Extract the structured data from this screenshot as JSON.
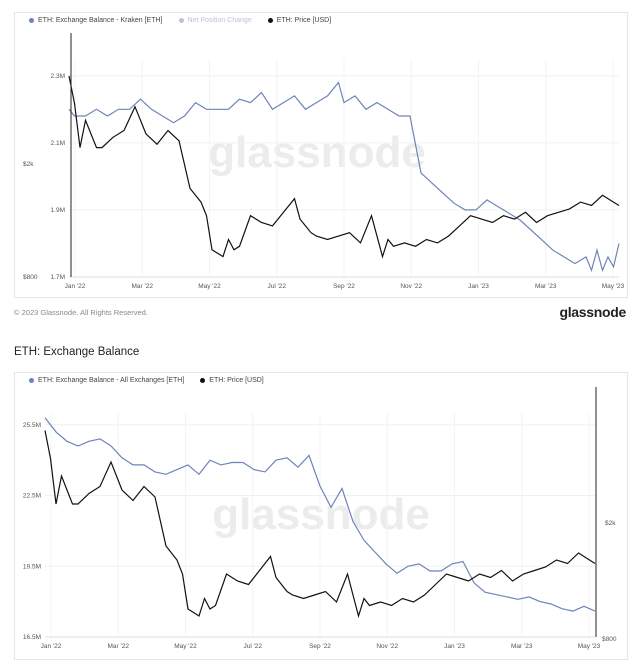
{
  "colors": {
    "balance": "#6d84b8",
    "price": "#111111",
    "muted": "#b9c3d6",
    "watermark": "#ececec"
  },
  "top_chart": {
    "legend": [
      {
        "label": "ETH: Exchange Balance - Kraken [ETH]",
        "color": "#6d84b8",
        "muted": false
      },
      {
        "label": "Net Position Change",
        "color": "#b9c3d6",
        "muted": true
      },
      {
        "label": "ETH: Price [USD]",
        "color": "#111111",
        "muted": false
      }
    ],
    "watermark": "glassnode",
    "left_axis_outer": [
      "$2k",
      "$800"
    ],
    "right_axis": []
  },
  "footer": {
    "copyright": "© 2023 Glassnode. All Rights Reserved.",
    "brand": "glassnode"
  },
  "bottom_chart": {
    "title": "ETH: Exchange Balance",
    "legend": [
      {
        "label": "ETH: Exchange Balance - All Exchanges [ETH]",
        "color": "#6d84b8",
        "muted": false
      },
      {
        "label": "ETH: Price [USD]",
        "color": "#111111",
        "muted": false
      }
    ],
    "watermark": "glassnode",
    "right_axis": [
      "$2k",
      "$800"
    ]
  },
  "chart_data": [
    {
      "type": "line",
      "title": "",
      "x_ticks": [
        "Jan '22",
        "Mar '22",
        "May '22",
        "Jul '22",
        "Sep '22",
        "Nov '22",
        "Jan '23",
        "Mar '23",
        "May '23"
      ],
      "y_ticks": [
        "2.3M",
        "2.1M",
        "1.9M",
        "1.7M"
      ],
      "ylim": [
        1.7,
        2.35
      ],
      "y_unit": "M",
      "grid": true,
      "legend_position": "top-left",
      "series": [
        {
          "name": "ETH: Exchange Balance - Kraken [ETH]",
          "axis": "left",
          "x": [
            0,
            0.01,
            0.03,
            0.05,
            0.07,
            0.09,
            0.11,
            0.13,
            0.15,
            0.17,
            0.19,
            0.21,
            0.23,
            0.25,
            0.27,
            0.29,
            0.31,
            0.33,
            0.35,
            0.37,
            0.39,
            0.41,
            0.43,
            0.45,
            0.47,
            0.49,
            0.5,
            0.52,
            0.54,
            0.56,
            0.58,
            0.6,
            0.62,
            0.64,
            0.66,
            0.68,
            0.7,
            0.72,
            0.74,
            0.76,
            0.78,
            0.8,
            0.82,
            0.84,
            0.86,
            0.88,
            0.9,
            0.92,
            0.94,
            0.95,
            0.96,
            0.97,
            0.98,
            0.99,
            1.0
          ],
          "values": [
            2.2,
            2.18,
            2.18,
            2.2,
            2.18,
            2.2,
            2.2,
            2.23,
            2.2,
            2.18,
            2.16,
            2.18,
            2.22,
            2.2,
            2.2,
            2.2,
            2.23,
            2.22,
            2.25,
            2.2,
            2.22,
            2.24,
            2.2,
            2.22,
            2.24,
            2.28,
            2.22,
            2.24,
            2.2,
            2.22,
            2.2,
            2.18,
            2.18,
            2.01,
            1.98,
            1.95,
            1.92,
            1.9,
            1.9,
            1.93,
            1.91,
            1.89,
            1.87,
            1.84,
            1.81,
            1.78,
            1.76,
            1.74,
            1.76,
            1.72,
            1.78,
            1.72,
            1.76,
            1.73,
            1.8
          ]
        },
        {
          "name": "ETH: Price [USD]",
          "axis": "right-hidden",
          "x": [
            0,
            0.01,
            0.02,
            0.03,
            0.05,
            0.06,
            0.08,
            0.1,
            0.12,
            0.14,
            0.16,
            0.18,
            0.2,
            0.22,
            0.24,
            0.25,
            0.26,
            0.28,
            0.29,
            0.3,
            0.31,
            0.33,
            0.35,
            0.37,
            0.39,
            0.41,
            0.42,
            0.43,
            0.44,
            0.45,
            0.47,
            0.49,
            0.51,
            0.53,
            0.55,
            0.57,
            0.58,
            0.59,
            0.61,
            0.63,
            0.65,
            0.67,
            0.69,
            0.71,
            0.73,
            0.75,
            0.77,
            0.79,
            0.81,
            0.83,
            0.85,
            0.87,
            0.89,
            0.91,
            0.93,
            0.95,
            0.97,
            0.99,
            1.0
          ],
          "values": [
            3750,
            3350,
            2700,
            3100,
            2700,
            2700,
            2850,
            2950,
            3300,
            2900,
            2750,
            2950,
            2800,
            2100,
            1900,
            1700,
            1200,
            1100,
            1350,
            1200,
            1250,
            1700,
            1600,
            1550,
            1750,
            1950,
            1650,
            1550,
            1450,
            1400,
            1350,
            1400,
            1450,
            1300,
            1700,
            1100,
            1350,
            1250,
            1300,
            1250,
            1350,
            1300,
            1400,
            1550,
            1700,
            1650,
            1600,
            1700,
            1650,
            1750,
            1600,
            1700,
            1750,
            1800,
            1900,
            1850,
            2000,
            1900,
            1850
          ]
        }
      ]
    },
    {
      "type": "line",
      "title": "ETH: Exchange Balance",
      "x_ticks": [
        "Jan '22",
        "Mar '22",
        "May '22",
        "Jul '22",
        "Sep '22",
        "Nov '22",
        "Jan '23",
        "Mar '23",
        "May '23"
      ],
      "y_ticks": [
        "25.5M",
        "22.5M",
        "19.5M",
        "16.5M"
      ],
      "ylim": [
        16.5,
        26.0
      ],
      "y_unit": "M",
      "grid": true,
      "legend_position": "top-left",
      "series": [
        {
          "name": "ETH: Exchange Balance - All Exchanges [ETH]",
          "axis": "left",
          "x": [
            0,
            0.02,
            0.04,
            0.06,
            0.08,
            0.1,
            0.12,
            0.14,
            0.16,
            0.18,
            0.2,
            0.22,
            0.24,
            0.26,
            0.28,
            0.3,
            0.32,
            0.34,
            0.36,
            0.38,
            0.4,
            0.42,
            0.44,
            0.46,
            0.48,
            0.5,
            0.52,
            0.54,
            0.56,
            0.58,
            0.6,
            0.62,
            0.64,
            0.66,
            0.68,
            0.7,
            0.72,
            0.74,
            0.76,
            0.78,
            0.8,
            0.82,
            0.84,
            0.86,
            0.88,
            0.9,
            0.92,
            0.94,
            0.96,
            0.98,
            1.0
          ],
          "values": [
            25.8,
            25.2,
            24.8,
            24.6,
            24.8,
            24.9,
            24.6,
            24.1,
            23.8,
            23.8,
            23.5,
            23.4,
            23.6,
            23.8,
            23.4,
            24.0,
            23.8,
            23.9,
            23.9,
            23.6,
            23.5,
            24.0,
            24.1,
            23.7,
            24.2,
            22.9,
            22.0,
            22.8,
            21.4,
            20.6,
            20.1,
            19.6,
            19.2,
            19.5,
            19.6,
            19.3,
            19.3,
            19.6,
            19.7,
            18.8,
            18.4,
            18.3,
            18.2,
            18.1,
            18.2,
            18.0,
            17.9,
            17.7,
            17.6,
            17.8,
            17.6
          ]
        },
        {
          "name": "ETH: Price [USD]",
          "axis": "right",
          "x": [
            0,
            0.01,
            0.02,
            0.03,
            0.05,
            0.06,
            0.08,
            0.1,
            0.12,
            0.14,
            0.16,
            0.18,
            0.2,
            0.22,
            0.24,
            0.25,
            0.26,
            0.28,
            0.29,
            0.3,
            0.31,
            0.33,
            0.35,
            0.37,
            0.39,
            0.41,
            0.42,
            0.43,
            0.44,
            0.45,
            0.47,
            0.49,
            0.51,
            0.53,
            0.55,
            0.57,
            0.58,
            0.59,
            0.61,
            0.63,
            0.65,
            0.67,
            0.69,
            0.71,
            0.73,
            0.75,
            0.77,
            0.79,
            0.81,
            0.83,
            0.85,
            0.87,
            0.89,
            0.91,
            0.93,
            0.95,
            0.97,
            0.99,
            1.0
          ],
          "values": [
            3750,
            3350,
            2700,
            3100,
            2700,
            2700,
            2850,
            2950,
            3300,
            2900,
            2750,
            2950,
            2800,
            2100,
            1900,
            1700,
            1200,
            1100,
            1350,
            1200,
            1250,
            1700,
            1600,
            1550,
            1750,
            1950,
            1650,
            1550,
            1450,
            1400,
            1350,
            1400,
            1450,
            1300,
            1700,
            1100,
            1350,
            1250,
            1300,
            1250,
            1350,
            1300,
            1400,
            1550,
            1700,
            1650,
            1600,
            1700,
            1650,
            1750,
            1600,
            1700,
            1750,
            1800,
            1900,
            1850,
            2000,
            1900,
            1850
          ]
        }
      ]
    }
  ]
}
